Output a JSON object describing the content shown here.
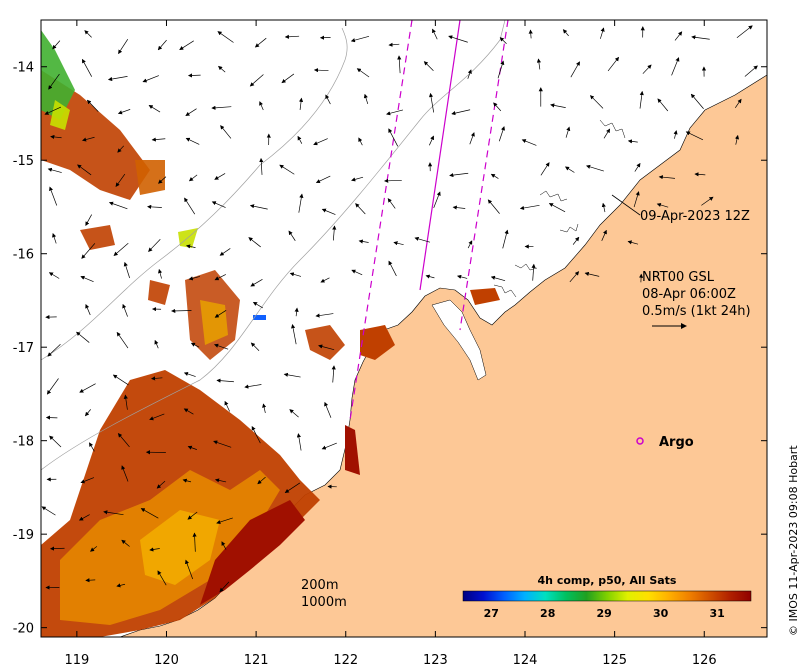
{
  "map": {
    "lat_ticks": [
      "-14",
      "-15",
      "-16",
      "-17",
      "-18",
      "-19",
      "-20"
    ],
    "lon_ticks": [
      "119",
      "120",
      "121",
      "122",
      "123",
      "124",
      "125",
      "126"
    ],
    "lat_range": [
      -20.1,
      -13.5
    ],
    "lon_range": [
      118.6,
      126.7
    ],
    "land_color": "#fdc896",
    "swath_color": "#cc00cc"
  },
  "annotations": {
    "swath_time": "09-Apr-2023 12Z",
    "current_source": "NRT00 GSL",
    "current_time": "08-Apr 06:00Z",
    "current_scale": "0.5m/s (1kt 24h)",
    "argo_label": "Argo",
    "isobath_1": "200m",
    "isobath_2": "1000m"
  },
  "colorbar": {
    "title": "4h comp, p50, All Sats",
    "ticks": [
      "27",
      "28",
      "29",
      "30",
      "31"
    ],
    "range": [
      26.5,
      31.6
    ],
    "colors": [
      "#000080",
      "#0010d0",
      "#0060ff",
      "#00b0ff",
      "#00e0c0",
      "#00c060",
      "#20a020",
      "#80d000",
      "#e0f000",
      "#ffe000",
      "#ffb000",
      "#f08000",
      "#d05000",
      "#b02000",
      "#900000"
    ]
  },
  "credit": "© IMOS 11-Apr-2023 09:08 Hobart"
}
